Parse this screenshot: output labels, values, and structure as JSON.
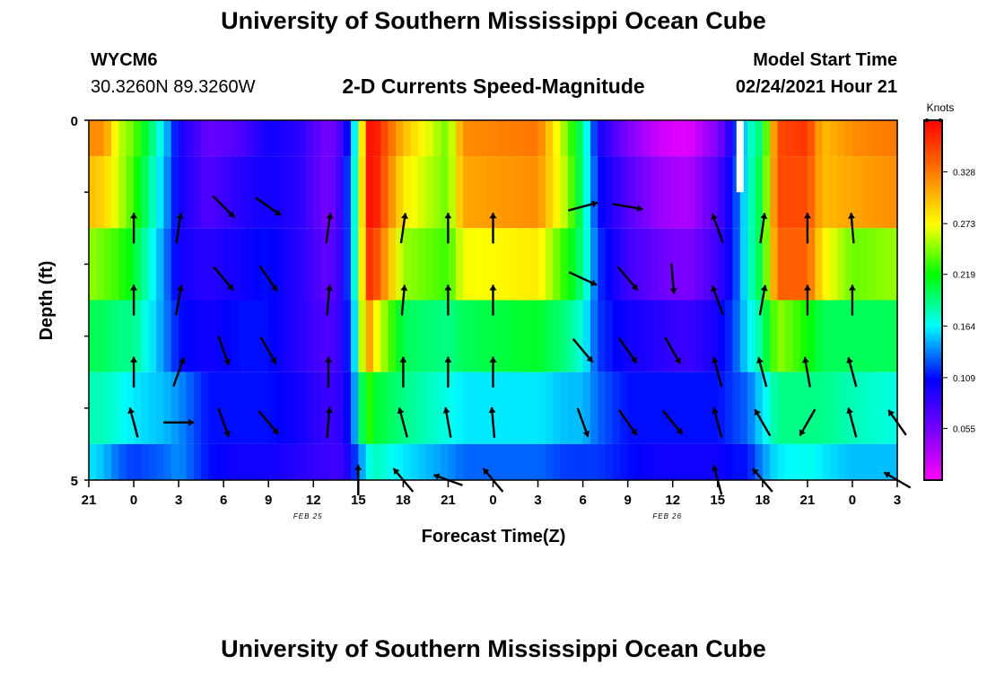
{
  "header": {
    "title": "University of Southern Mississippi Ocean Cube",
    "station_id": "WYCM6",
    "coordinates": "30.3260N 89.3260W",
    "subtitle": "2-D Currents Speed-Magnitude",
    "model_start_label": "Model Start Time",
    "model_start_time": "02/24/2021 Hour 21"
  },
  "footer": {
    "title": "University of Southern Mississippi Ocean Cube"
  },
  "chart_data": {
    "type": "heatmap",
    "xlabel": "Forecast Time(Z)",
    "ylabel": "Depth (ft)",
    "colorbar_label": "Knots",
    "x_tick_labels": [
      "21",
      "0",
      "3",
      "6",
      "9",
      "12",
      "15",
      "18",
      "21",
      "0",
      "3",
      "6",
      "9",
      "12",
      "15",
      "18",
      "21",
      "0",
      "3"
    ],
    "date_labels": [
      {
        "text": "FEB 25",
        "after_tick_index": 6
      },
      {
        "text": "FEB 26",
        "after_tick_index": 14
      }
    ],
    "y_tick_labels": [
      "0",
      "5"
    ],
    "depth_range_ft": [
      0,
      5
    ],
    "colorbar_ticks": [
      "0.328",
      "0.273",
      "0.219",
      "0.164",
      "0.109",
      "0.055"
    ],
    "colorbar_range_knots": [
      0.0,
      0.383
    ],
    "forecast_hours_range": [
      0,
      54
    ],
    "rows": [
      {
        "depth_ft": 0.0,
        "speed_profile": [
          [
            0,
            0.32
          ],
          [
            1,
            0.32
          ],
          [
            2,
            0.26
          ],
          [
            3,
            0.24
          ],
          [
            5,
            0.16
          ],
          [
            6,
            0.1
          ],
          [
            8,
            0.06
          ],
          [
            10,
            0.07
          ],
          [
            12,
            0.1
          ],
          [
            14,
            0.09
          ],
          [
            16,
            0.05
          ],
          [
            17,
            0.08
          ],
          [
            18,
            0.19
          ],
          [
            18.5,
            0.37
          ],
          [
            19,
            0.38
          ],
          [
            21,
            0.3
          ],
          [
            24,
            0.24
          ],
          [
            25,
            0.32
          ],
          [
            30,
            0.33
          ],
          [
            32,
            0.24
          ],
          [
            33,
            0.19
          ],
          [
            34,
            0.1
          ],
          [
            36,
            0.05
          ],
          [
            38,
            0.02
          ],
          [
            40,
            0.01
          ],
          [
            42,
            0.05
          ],
          [
            43,
            0.1
          ],
          [
            44,
            0.17
          ],
          [
            45,
            0.2
          ],
          [
            46,
            0.35
          ],
          [
            48,
            0.36
          ],
          [
            49,
            0.3
          ],
          [
            51,
            0.32
          ],
          [
            54,
            0.33
          ]
        ]
      },
      {
        "depth_ft": 1.0,
        "speed_profile": [
          [
            0,
            0.3
          ],
          [
            1,
            0.29
          ],
          [
            2,
            0.26
          ],
          [
            3,
            0.23
          ],
          [
            5,
            0.15
          ],
          [
            6,
            0.1
          ],
          [
            8,
            0.07
          ],
          [
            10,
            0.09
          ],
          [
            12,
            0.1
          ],
          [
            14,
            0.09
          ],
          [
            16,
            0.05
          ],
          [
            17,
            0.09
          ],
          [
            18,
            0.2
          ],
          [
            18.5,
            0.37
          ],
          [
            19,
            0.38
          ],
          [
            21,
            0.28
          ],
          [
            24,
            0.24
          ],
          [
            25,
            0.31
          ],
          [
            30,
            0.32
          ],
          [
            32,
            0.25
          ],
          [
            33,
            0.19
          ],
          [
            34,
            0.11
          ],
          [
            36,
            0.07
          ],
          [
            38,
            0.04
          ],
          [
            40,
            0.03
          ],
          [
            42,
            0.07
          ],
          [
            43,
            0.11
          ],
          [
            44,
            0.17
          ],
          [
            45,
            0.21
          ],
          [
            46,
            0.35
          ],
          [
            48,
            0.35
          ],
          [
            49,
            0.3
          ],
          [
            51,
            0.31
          ],
          [
            54,
            0.32
          ]
        ]
      },
      {
        "depth_ft": 2.0,
        "speed_profile": [
          [
            0,
            0.25
          ],
          [
            1,
            0.24
          ],
          [
            2,
            0.23
          ],
          [
            3,
            0.21
          ],
          [
            5,
            0.14
          ],
          [
            6,
            0.1
          ],
          [
            8,
            0.09
          ],
          [
            10,
            0.1
          ],
          [
            12,
            0.11
          ],
          [
            14,
            0.09
          ],
          [
            16,
            0.06
          ],
          [
            17,
            0.09
          ],
          [
            18,
            0.2
          ],
          [
            18.5,
            0.36
          ],
          [
            19,
            0.36
          ],
          [
            21,
            0.25
          ],
          [
            24,
            0.23
          ],
          [
            25,
            0.27
          ],
          [
            30,
            0.28
          ],
          [
            32,
            0.22
          ],
          [
            33,
            0.19
          ],
          [
            34,
            0.12
          ],
          [
            36,
            0.08
          ],
          [
            38,
            0.06
          ],
          [
            40,
            0.05
          ],
          [
            42,
            0.08
          ],
          [
            43,
            0.11
          ],
          [
            44,
            0.17
          ],
          [
            45,
            0.21
          ],
          [
            46,
            0.34
          ],
          [
            48,
            0.34
          ],
          [
            49,
            0.28
          ],
          [
            51,
            0.24
          ],
          [
            54,
            0.25
          ]
        ]
      },
      {
        "depth_ft": 3.0,
        "speed_profile": [
          [
            0,
            0.2
          ],
          [
            1,
            0.2
          ],
          [
            2,
            0.19
          ],
          [
            3,
            0.19
          ],
          [
            5,
            0.14
          ],
          [
            6,
            0.11
          ],
          [
            8,
            0.1
          ],
          [
            10,
            0.11
          ],
          [
            12,
            0.11
          ],
          [
            14,
            0.09
          ],
          [
            16,
            0.07
          ],
          [
            17,
            0.09
          ],
          [
            18,
            0.18
          ],
          [
            18.5,
            0.34
          ],
          [
            19,
            0.28
          ],
          [
            21,
            0.2
          ],
          [
            24,
            0.19
          ],
          [
            25,
            0.2
          ],
          [
            30,
            0.21
          ],
          [
            32,
            0.19
          ],
          [
            33,
            0.17
          ],
          [
            34,
            0.12
          ],
          [
            36,
            0.1
          ],
          [
            38,
            0.09
          ],
          [
            40,
            0.08
          ],
          [
            42,
            0.1
          ],
          [
            43,
            0.12
          ],
          [
            44,
            0.16
          ],
          [
            45,
            0.19
          ],
          [
            46,
            0.25
          ],
          [
            48,
            0.22
          ],
          [
            49,
            0.2
          ],
          [
            51,
            0.2
          ],
          [
            54,
            0.2
          ]
        ]
      },
      {
        "depth_ft": 4.0,
        "speed_profile": [
          [
            0,
            0.18
          ],
          [
            1,
            0.18
          ],
          [
            2,
            0.17
          ],
          [
            3,
            0.16
          ],
          [
            5,
            0.15
          ],
          [
            6,
            0.14
          ],
          [
            8,
            0.11
          ],
          [
            10,
            0.11
          ],
          [
            12,
            0.11
          ],
          [
            14,
            0.1
          ],
          [
            16,
            0.08
          ],
          [
            17,
            0.09
          ],
          [
            18,
            0.16
          ],
          [
            18.5,
            0.24
          ],
          [
            19,
            0.21
          ],
          [
            21,
            0.19
          ],
          [
            24,
            0.17
          ],
          [
            25,
            0.16
          ],
          [
            30,
            0.16
          ],
          [
            32,
            0.15
          ],
          [
            33,
            0.15
          ],
          [
            34,
            0.13
          ],
          [
            36,
            0.11
          ],
          [
            38,
            0.11
          ],
          [
            40,
            0.11
          ],
          [
            42,
            0.11
          ],
          [
            43,
            0.12
          ],
          [
            44,
            0.13
          ],
          [
            45,
            0.16
          ],
          [
            46,
            0.19
          ],
          [
            48,
            0.19
          ],
          [
            49,
            0.19
          ],
          [
            51,
            0.18
          ],
          [
            54,
            0.17
          ]
        ]
      },
      {
        "depth_ft": 5.0,
        "speed_profile": [
          [
            0,
            0.16
          ],
          [
            1,
            0.15
          ],
          [
            2,
            0.13
          ],
          [
            3,
            0.12
          ],
          [
            5,
            0.13
          ],
          [
            6,
            0.14
          ],
          [
            8,
            0.11
          ],
          [
            10,
            0.1
          ],
          [
            12,
            0.1
          ],
          [
            14,
            0.09
          ],
          [
            16,
            0.08
          ],
          [
            17,
            0.08
          ],
          [
            18,
            0.13
          ],
          [
            18.5,
            0.16
          ],
          [
            19,
            0.18
          ],
          [
            21,
            0.16
          ],
          [
            24,
            0.14
          ],
          [
            25,
            0.13
          ],
          [
            30,
            0.13
          ],
          [
            32,
            0.12
          ],
          [
            33,
            0.12
          ],
          [
            34,
            0.12
          ],
          [
            36,
            0.11
          ],
          [
            38,
            0.1
          ],
          [
            40,
            0.1
          ],
          [
            42,
            0.1
          ],
          [
            43,
            0.11
          ],
          [
            44,
            0.11
          ],
          [
            45,
            0.14
          ],
          [
            46,
            0.16
          ],
          [
            48,
            0.17
          ],
          [
            49,
            0.16
          ],
          [
            51,
            0.15
          ],
          [
            54,
            0.15
          ]
        ]
      }
    ],
    "vectors": [
      {
        "t": 3,
        "d": 1.5,
        "dir": 0
      },
      {
        "t": 6,
        "d": 1.5,
        "dir": 8
      },
      {
        "t": 9,
        "d": 1.2,
        "dir": 135
      },
      {
        "t": 12,
        "d": 1.2,
        "dir": 125
      },
      {
        "t": 16,
        "d": 1.5,
        "dir": 8
      },
      {
        "t": 21,
        "d": 1.5,
        "dir": 8
      },
      {
        "t": 24,
        "d": 1.5,
        "dir": 0
      },
      {
        "t": 27,
        "d": 1.5,
        "dir": 0
      },
      {
        "t": 33,
        "d": 1.2,
        "dir": 75
      },
      {
        "t": 36,
        "d": 1.2,
        "dir": 100
      },
      {
        "t": 42,
        "d": 1.5,
        "dir": 340
      },
      {
        "t": 45,
        "d": 1.5,
        "dir": 8
      },
      {
        "t": 48,
        "d": 1.5,
        "dir": 0
      },
      {
        "t": 51,
        "d": 1.5,
        "dir": 355
      },
      {
        "t": 3,
        "d": 2.5,
        "dir": 0
      },
      {
        "t": 6,
        "d": 2.5,
        "dir": 10
      },
      {
        "t": 9,
        "d": 2.2,
        "dir": 140
      },
      {
        "t": 12,
        "d": 2.2,
        "dir": 145
      },
      {
        "t": 16,
        "d": 2.5,
        "dir": 5
      },
      {
        "t": 21,
        "d": 2.5,
        "dir": 5
      },
      {
        "t": 24,
        "d": 2.5,
        "dir": 0
      },
      {
        "t": 27,
        "d": 2.5,
        "dir": 0
      },
      {
        "t": 33,
        "d": 2.2,
        "dir": 115
      },
      {
        "t": 36,
        "d": 2.2,
        "dir": 140
      },
      {
        "t": 39,
        "d": 2.2,
        "dir": 175
      },
      {
        "t": 42,
        "d": 2.5,
        "dir": 340
      },
      {
        "t": 45,
        "d": 2.5,
        "dir": 10
      },
      {
        "t": 48,
        "d": 2.5,
        "dir": 0
      },
      {
        "t": 51,
        "d": 2.5,
        "dir": 0
      },
      {
        "t": 3,
        "d": 3.5,
        "dir": 0
      },
      {
        "t": 6,
        "d": 3.5,
        "dir": 20
      },
      {
        "t": 9,
        "d": 3.2,
        "dir": 160
      },
      {
        "t": 12,
        "d": 3.2,
        "dir": 150
      },
      {
        "t": 16,
        "d": 3.5,
        "dir": 0
      },
      {
        "t": 21,
        "d": 3.5,
        "dir": 0
      },
      {
        "t": 24,
        "d": 3.5,
        "dir": 0
      },
      {
        "t": 27,
        "d": 3.5,
        "dir": 0
      },
      {
        "t": 33,
        "d": 3.2,
        "dir": 140
      },
      {
        "t": 36,
        "d": 3.2,
        "dir": 145
      },
      {
        "t": 39,
        "d": 3.2,
        "dir": 150
      },
      {
        "t": 42,
        "d": 3.5,
        "dir": 345
      },
      {
        "t": 45,
        "d": 3.5,
        "dir": 345
      },
      {
        "t": 48,
        "d": 3.5,
        "dir": 350
      },
      {
        "t": 51,
        "d": 3.5,
        "dir": 345
      },
      {
        "t": 3,
        "d": 4.2,
        "dir": 345
      },
      {
        "t": 6,
        "d": 4.2,
        "dir": 90
      },
      {
        "t": 9,
        "d": 4.2,
        "dir": 160
      },
      {
        "t": 12,
        "d": 4.2,
        "dir": 140
      },
      {
        "t": 16,
        "d": 4.2,
        "dir": 5
      },
      {
        "t": 21,
        "d": 4.2,
        "dir": 345
      },
      {
        "t": 24,
        "d": 4.2,
        "dir": 350
      },
      {
        "t": 27,
        "d": 4.2,
        "dir": 355
      },
      {
        "t": 33,
        "d": 4.2,
        "dir": 160
      },
      {
        "t": 36,
        "d": 4.2,
        "dir": 145
      },
      {
        "t": 39,
        "d": 4.2,
        "dir": 140
      },
      {
        "t": 42,
        "d": 4.2,
        "dir": 345
      },
      {
        "t": 45,
        "d": 4.2,
        "dir": 330
      },
      {
        "t": 48,
        "d": 4.2,
        "dir": 210
      },
      {
        "t": 51,
        "d": 4.2,
        "dir": 345
      },
      {
        "t": 54,
        "d": 4.2,
        "dir": 325
      },
      {
        "t": 18,
        "d": 5.0,
        "dir": 0
      },
      {
        "t": 21,
        "d": 5.0,
        "dir": 320
      },
      {
        "t": 24,
        "d": 5.0,
        "dir": 290
      },
      {
        "t": 27,
        "d": 5.0,
        "dir": 320
      },
      {
        "t": 42,
        "d": 5.0,
        "dir": 345
      },
      {
        "t": 45,
        "d": 5.0,
        "dir": 320
      },
      {
        "t": 54,
        "d": 5.0,
        "dir": 300
      }
    ],
    "gap_hour": 43.5
  }
}
